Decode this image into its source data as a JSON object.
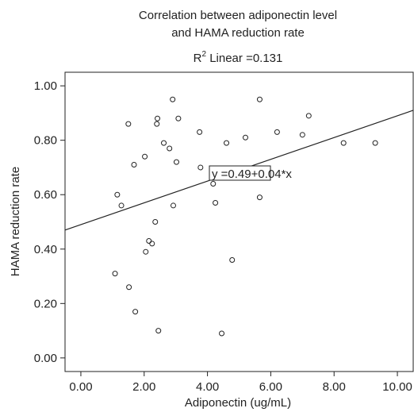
{
  "chart_data": {
    "type": "scatter",
    "title": "Correlation between adiponectin level",
    "title_line2": "and HAMA reduction rate",
    "r2_prefix": "R",
    "r2_sup": "2",
    "r2_text": " Linear =0.131",
    "xlabel": "Adiponectin (ug/mL)",
    "ylabel": "HAMA reduction rate",
    "xlim": [
      -0.5,
      10.5
    ],
    "ylim": [
      -0.05,
      1.05
    ],
    "xticks": [
      "0.00",
      "2.00",
      "4.00",
      "6.00",
      "8.00",
      "10.00"
    ],
    "yticks": [
      "0.00",
      "0.20",
      "0.40",
      "0.60",
      "0.80",
      "1.00"
    ],
    "grid": false,
    "regression": {
      "intercept": 0.49,
      "slope": 0.04,
      "equation": "y =0.49+0.04*x"
    },
    "marker_color": "#222222",
    "points": [
      {
        "x": 1.08,
        "y": 0.31
      },
      {
        "x": 1.15,
        "y": 0.6
      },
      {
        "x": 1.28,
        "y": 0.56
      },
      {
        "x": 1.5,
        "y": 0.86
      },
      {
        "x": 1.52,
        "y": 0.26
      },
      {
        "x": 1.68,
        "y": 0.71
      },
      {
        "x": 1.72,
        "y": 0.17
      },
      {
        "x": 2.02,
        "y": 0.74
      },
      {
        "x": 2.05,
        "y": 0.39
      },
      {
        "x": 2.15,
        "y": 0.43
      },
      {
        "x": 2.25,
        "y": 0.42
      },
      {
        "x": 2.35,
        "y": 0.5
      },
      {
        "x": 2.4,
        "y": 0.86
      },
      {
        "x": 2.42,
        "y": 0.88
      },
      {
        "x": 2.45,
        "y": 0.1
      },
      {
        "x": 2.62,
        "y": 0.79
      },
      {
        "x": 2.8,
        "y": 0.77
      },
      {
        "x": 2.9,
        "y": 0.95
      },
      {
        "x": 2.92,
        "y": 0.56
      },
      {
        "x": 3.02,
        "y": 0.72
      },
      {
        "x": 3.08,
        "y": 0.88
      },
      {
        "x": 3.75,
        "y": 0.83
      },
      {
        "x": 3.78,
        "y": 0.7
      },
      {
        "x": 4.18,
        "y": 0.64
      },
      {
        "x": 4.25,
        "y": 0.57
      },
      {
        "x": 4.45,
        "y": 0.09
      },
      {
        "x": 4.6,
        "y": 0.79
      },
      {
        "x": 4.78,
        "y": 0.36
      },
      {
        "x": 5.2,
        "y": 0.81
      },
      {
        "x": 5.65,
        "y": 0.95
      },
      {
        "x": 5.65,
        "y": 0.59
      },
      {
        "x": 6.2,
        "y": 0.83
      },
      {
        "x": 7.0,
        "y": 0.82
      },
      {
        "x": 7.2,
        "y": 0.89
      },
      {
        "x": 8.3,
        "y": 0.79
      },
      {
        "x": 9.3,
        "y": 0.79
      }
    ]
  }
}
